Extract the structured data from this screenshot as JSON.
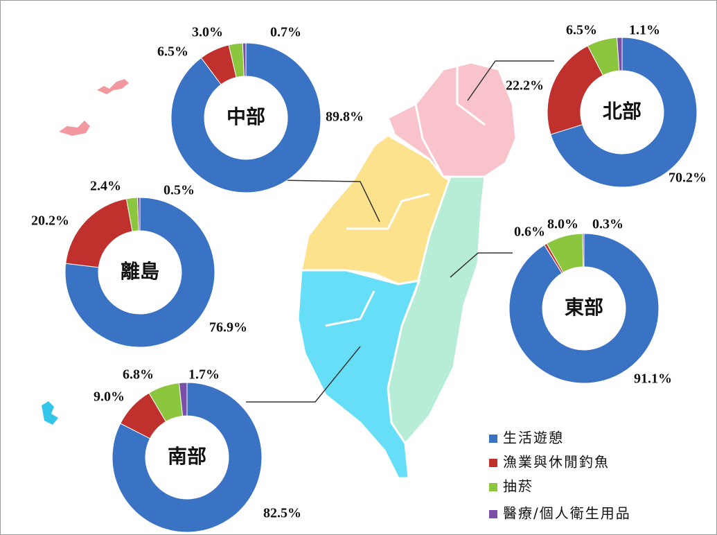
{
  "chart_data": [
    {
      "type": "pie",
      "title": "中部",
      "values": [
        89.8,
        6.5,
        3.0,
        0.7
      ],
      "value_labels": [
        "89.8%",
        "6.5%",
        "3.0%",
        "0.7%"
      ]
    },
    {
      "type": "pie",
      "title": "北部",
      "values": [
        70.2,
        22.2,
        6.5,
        1.1
      ],
      "value_labels": [
        "70.2%",
        "22.2%",
        "6.5%",
        "1.1%"
      ]
    },
    {
      "type": "pie",
      "title": "離島",
      "values": [
        76.9,
        20.2,
        2.4,
        0.5
      ],
      "value_labels": [
        "76.9%",
        "20.2%",
        "2.4%",
        "0.5%"
      ]
    },
    {
      "type": "pie",
      "title": "東部",
      "values": [
        91.1,
        0.6,
        8.0,
        0.3
      ],
      "value_labels": [
        "91.1%",
        "0.6%",
        "8.0%",
        "0.3%"
      ]
    },
    {
      "type": "pie",
      "title": "南部",
      "values": [
        82.5,
        9.0,
        6.8,
        1.7
      ],
      "value_labels": [
        "82.5%",
        "9.0%",
        "6.8%",
        "1.7%"
      ]
    }
  ],
  "legend": {
    "labels": [
      "生活遊憩",
      "漁業與休閒釣魚",
      "抽菸",
      "醫療/個人衛生用品"
    ],
    "colors": [
      "#3a72c4",
      "#c0302c",
      "#8cc63e",
      "#7a4fa8"
    ]
  }
}
